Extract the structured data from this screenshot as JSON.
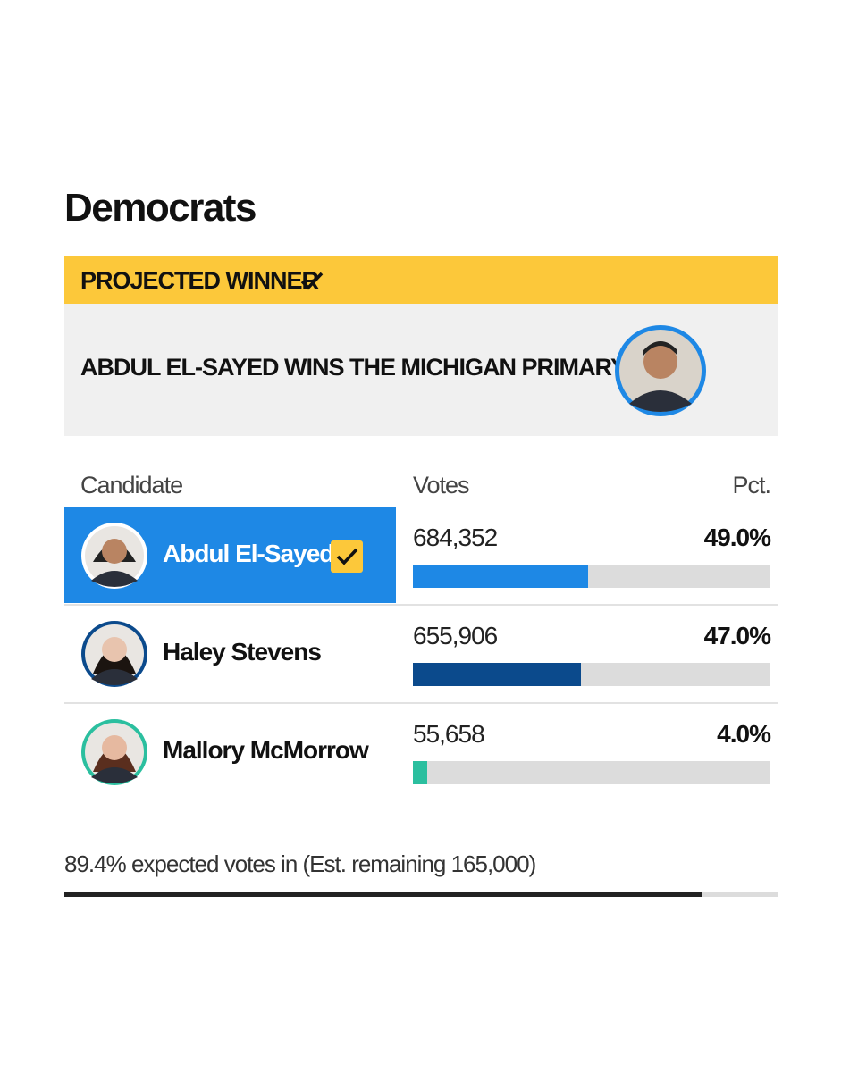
{
  "title": "Democrats",
  "banner": {
    "label": "PROJECTED WINNER",
    "headline": "ABDUL EL-SAYED WINS THE MICHIGAN PRIMARY"
  },
  "table": {
    "headers": [
      "Candidate",
      "Votes",
      "Pct."
    ],
    "track_color": "#dcdcdc",
    "rows": [
      {
        "name": "Abdul El-Sayed",
        "votes": "684,352",
        "pct": {
          "value": 49.0,
          "label": "49.0%"
        },
        "color": "#1e88e5",
        "winner": true
      },
      {
        "name": "Haley Stevens",
        "votes": "655,906",
        "pct": {
          "value": 47.0,
          "label": "47.0%"
        },
        "color": "#0b4a8c",
        "winner": false
      },
      {
        "name": "Mallory McMorrow",
        "votes": "55,658",
        "pct": {
          "value": 4.0,
          "label": "4.0%"
        },
        "color": "#2bbf9f",
        "winner": false
      }
    ]
  },
  "footer": {
    "expected": {
      "value": 89.4,
      "label": "89.4% expected votes in (Est. remaining 165,000)"
    },
    "color": "#222222"
  }
}
